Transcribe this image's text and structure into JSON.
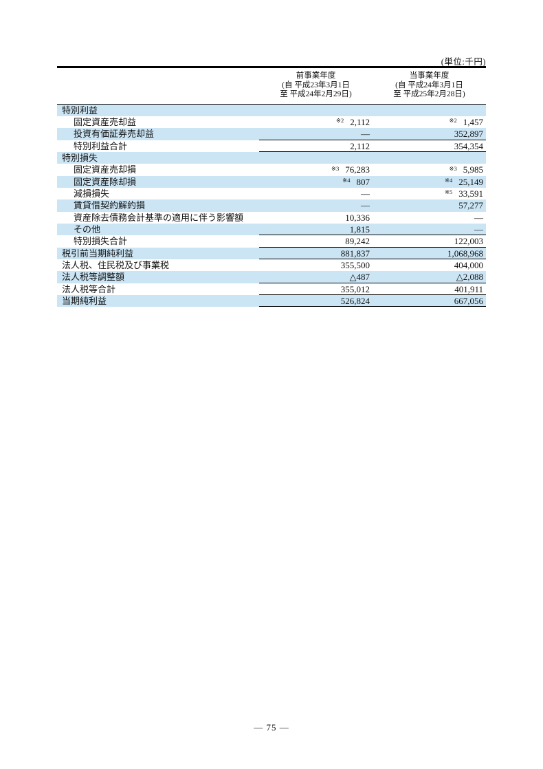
{
  "page": {
    "unit_label": "(単位:千円)",
    "page_number": "― 75 ―"
  },
  "colors": {
    "row_shade": "#cbe5f5",
    "rule": "#000000"
  },
  "table": {
    "columns": [
      {
        "title": "前事業年度",
        "period_from": "(自 平成23年3月1日",
        "period_to": "至 平成24年2月29日)"
      },
      {
        "title": "当事業年度",
        "period_from": "(自 平成24年3月1日",
        "period_to": "至 平成25年2月28日)"
      }
    ],
    "rows": [
      {
        "label": "特別利益",
        "indent": 0,
        "shaded": true,
        "note1": "",
        "col1": "",
        "note2": "",
        "col2": "",
        "line_bottom": false
      },
      {
        "label": "固定資産売却益",
        "indent": 1,
        "shaded": false,
        "note1": "※2",
        "col1": "2,112",
        "note2": "※2",
        "col2": "1,457",
        "line_bottom": false
      },
      {
        "label": "投資有価証券売却益",
        "indent": 1,
        "shaded": true,
        "note1": "",
        "col1": "―",
        "note2": "",
        "col2": "352,897",
        "line_bottom": true
      },
      {
        "label": "特別利益合計",
        "indent": 1,
        "shaded": false,
        "note1": "",
        "col1": "2,112",
        "note2": "",
        "col2": "354,354",
        "line_bottom": true
      },
      {
        "label": "特別損失",
        "indent": 0,
        "shaded": true,
        "note1": "",
        "col1": "",
        "note2": "",
        "col2": "",
        "line_bottom": false
      },
      {
        "label": "固定資産売却損",
        "indent": 1,
        "shaded": false,
        "note1": "※3",
        "col1": "76,283",
        "note2": "※3",
        "col2": "5,985",
        "line_bottom": false
      },
      {
        "label": "固定資産除却損",
        "indent": 1,
        "shaded": true,
        "note1": "※4",
        "col1": "807",
        "note2": "※4",
        "col2": "25,149",
        "line_bottom": false
      },
      {
        "label": "減損損失",
        "indent": 1,
        "shaded": false,
        "note1": "",
        "col1": "―",
        "note2": "※5",
        "col2": "33,591",
        "line_bottom": false
      },
      {
        "label": "賃貸借契約解約損",
        "indent": 1,
        "shaded": true,
        "note1": "",
        "col1": "―",
        "note2": "",
        "col2": "57,277",
        "line_bottom": false
      },
      {
        "label": "資産除去債務会計基準の適用に伴う影響額",
        "indent": 1,
        "shaded": false,
        "note1": "",
        "col1": "10,336",
        "note2": "",
        "col2": "―",
        "line_bottom": false
      },
      {
        "label": "その他",
        "indent": 1,
        "shaded": true,
        "note1": "",
        "col1": "1,815",
        "note2": "",
        "col2": "―",
        "line_bottom": true
      },
      {
        "label": "特別損失合計",
        "indent": 1,
        "shaded": false,
        "note1": "",
        "col1": "89,242",
        "note2": "",
        "col2": "122,003",
        "line_bottom": true
      },
      {
        "label": "税引前当期純利益",
        "indent": 0,
        "shaded": true,
        "note1": "",
        "col1": "881,837",
        "note2": "",
        "col2": "1,068,968",
        "line_bottom": true
      },
      {
        "label": "法人税、住民税及び事業税",
        "indent": 0,
        "shaded": false,
        "note1": "",
        "col1": "355,500",
        "note2": "",
        "col2": "404,000",
        "line_bottom": false
      },
      {
        "label": "法人税等調整額",
        "indent": 0,
        "shaded": true,
        "note1": "",
        "col1": "△487",
        "note2": "",
        "col2": "△2,088",
        "line_bottom": true
      },
      {
        "label": "法人税等合計",
        "indent": 0,
        "shaded": false,
        "note1": "",
        "col1": "355,012",
        "note2": "",
        "col2": "401,911",
        "line_bottom": true
      },
      {
        "label": "当期純利益",
        "indent": 0,
        "shaded": true,
        "note1": "",
        "col1": "526,824",
        "note2": "",
        "col2": "667,056",
        "line_bottom": true
      }
    ]
  }
}
